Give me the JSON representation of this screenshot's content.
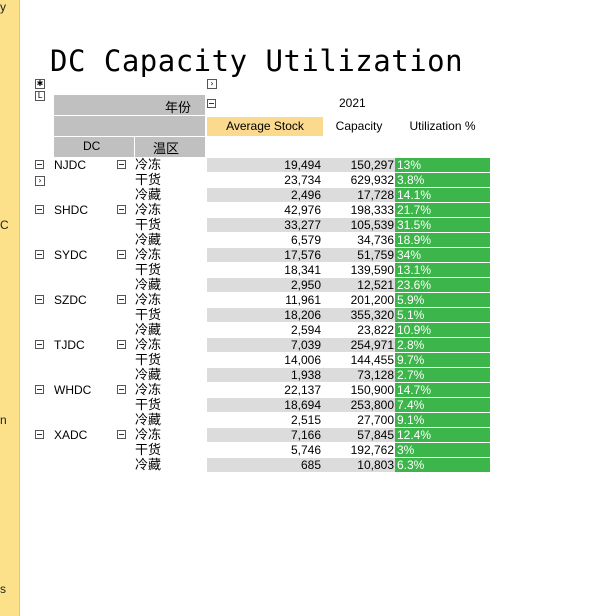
{
  "side_panel": {
    "fragments": [
      "y",
      "C",
      "n",
      "s"
    ]
  },
  "title": "DC Capacity Utilization",
  "pivot": {
    "year_header": "年份",
    "year_value": "2021",
    "measures": [
      "Average Stock",
      "Capacity",
      "Utilization %"
    ],
    "row_headers": [
      "DC",
      "温区"
    ],
    "rows": [
      {
        "dc": "NJDC",
        "temp": "冷冻",
        "avg": "19,494",
        "cap": "150,297",
        "util": "13%"
      },
      {
        "dc": "",
        "temp": "干货",
        "avg": "23,734",
        "cap": "629,932",
        "util": "3.8%"
      },
      {
        "dc": "",
        "temp": "冷藏",
        "avg": "2,496",
        "cap": "17,728",
        "util": "14.1%"
      },
      {
        "dc": "SHDC",
        "temp": "冷冻",
        "avg": "42,976",
        "cap": "198,333",
        "util": "21.7%"
      },
      {
        "dc": "",
        "temp": "干货",
        "avg": "33,277",
        "cap": "105,539",
        "util": "31.5%"
      },
      {
        "dc": "",
        "temp": "冷藏",
        "avg": "6,579",
        "cap": "34,736",
        "util": "18.9%"
      },
      {
        "dc": "SYDC",
        "temp": "冷冻",
        "avg": "17,576",
        "cap": "51,759",
        "util": "34%"
      },
      {
        "dc": "",
        "temp": "干货",
        "avg": "18,341",
        "cap": "139,590",
        "util": "13.1%"
      },
      {
        "dc": "",
        "temp": "冷藏",
        "avg": "2,950",
        "cap": "12,521",
        "util": "23.6%"
      },
      {
        "dc": "SZDC",
        "temp": "冷冻",
        "avg": "11,961",
        "cap": "201,200",
        "util": "5.9%"
      },
      {
        "dc": "",
        "temp": "干货",
        "avg": "18,206",
        "cap": "355,320",
        "util": "5.1%"
      },
      {
        "dc": "",
        "temp": "冷藏",
        "avg": "2,594",
        "cap": "23,822",
        "util": "10.9%"
      },
      {
        "dc": "TJDC",
        "temp": "冷冻",
        "avg": "7,039",
        "cap": "254,971",
        "util": "2.8%"
      },
      {
        "dc": "",
        "temp": "干货",
        "avg": "14,006",
        "cap": "144,455",
        "util": "9.7%"
      },
      {
        "dc": "",
        "temp": "冷藏",
        "avg": "1,938",
        "cap": "73,128",
        "util": "2.7%"
      },
      {
        "dc": "WHDC",
        "temp": "冷冻",
        "avg": "22,137",
        "cap": "150,900",
        "util": "14.7%"
      },
      {
        "dc": "",
        "temp": "干货",
        "avg": "18,694",
        "cap": "253,800",
        "util": "7.4%"
      },
      {
        "dc": "",
        "temp": "冷藏",
        "avg": "2,515",
        "cap": "27,700",
        "util": "9.1%"
      },
      {
        "dc": "XADC",
        "temp": "冷冻",
        "avg": "7,166",
        "cap": "57,845",
        "util": "12.4%"
      },
      {
        "dc": "",
        "temp": "干货",
        "avg": "5,746",
        "cap": "192,762",
        "util": "3%"
      },
      {
        "dc": "",
        "temp": "冷藏",
        "avg": "685",
        "cap": "10,803",
        "util": "6.3%"
      }
    ]
  },
  "colors": {
    "side_panel": "#fde08a",
    "header_gray": "#c0c0c0",
    "measure_header_highlight": "#fbd98f",
    "utilization_fill": "#3cb54a",
    "row_shade": "#dcdcdc"
  }
}
